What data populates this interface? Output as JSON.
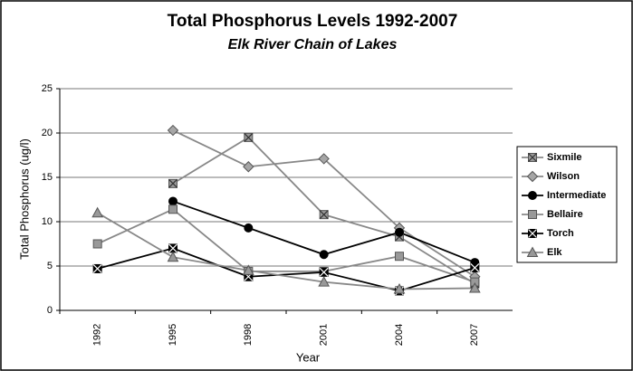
{
  "chart_data": {
    "type": "line",
    "title": "Total Phosphorus Levels 1992-2007",
    "subtitle": "Elk River Chain of Lakes",
    "x_label": "Year",
    "y_label": "Total Phosphorus (ug/l)",
    "categories": [
      "1992",
      "1995",
      "1998",
      "2001",
      "2004",
      "2007"
    ],
    "ylim": [
      0,
      25
    ],
    "yticks": [
      0,
      5,
      10,
      15,
      20,
      25
    ],
    "grid": true,
    "legend": "right",
    "series": [
      {
        "name": "Sixmile",
        "color": "#999999",
        "marker": "xsquare",
        "values": [
          null,
          14.3,
          19.5,
          10.8,
          8.3,
          3.0
        ]
      },
      {
        "name": "Wilson",
        "color": "#a6a6a6",
        "marker": "diamond",
        "values": [
          null,
          20.3,
          16.2,
          17.1,
          9.3,
          3.8
        ]
      },
      {
        "name": "Intermediate",
        "color": "#000000",
        "marker": "circle",
        "values": [
          null,
          12.3,
          9.3,
          6.3,
          8.8,
          5.4
        ]
      },
      {
        "name": "Bellaire",
        "color": "#999999",
        "marker": "square",
        "values": [
          7.5,
          11.4,
          4.4,
          4.4,
          6.1,
          3.2
        ]
      },
      {
        "name": "Torch",
        "color": "#000000",
        "marker": "xsquare",
        "values": [
          4.7,
          7.0,
          3.8,
          4.3,
          2.2,
          4.8
        ]
      },
      {
        "name": "Elk",
        "color": "#999999",
        "marker": "triangle",
        "values": [
          11.0,
          6.0,
          4.5,
          3.2,
          2.4,
          2.5
        ]
      }
    ]
  }
}
